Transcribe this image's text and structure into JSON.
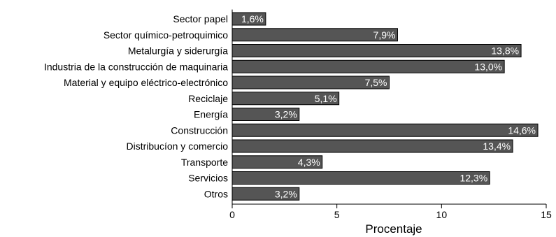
{
  "chart_data": {
    "type": "bar",
    "orientation": "horizontal",
    "categories": [
      "Sector papel",
      "Sector químico-petroquimico",
      "Metalurgía y siderurgía",
      "Industria de la construcción de maquinaria",
      "Material y equipo eléctrico-electrónico",
      "Reciclaje",
      "Energía",
      "Construcción",
      "Distribucíon y comercio",
      "Transporte",
      "Servicios",
      "Otros"
    ],
    "values": [
      1.6,
      7.9,
      13.8,
      13.0,
      7.5,
      5.1,
      3.2,
      14.6,
      13.4,
      4.3,
      12.3,
      3.2
    ],
    "value_labels": [
      "1,6%",
      "7,9%",
      "13,8%",
      "13,0%",
      "7,5%",
      "5,1%",
      "3,2%",
      "14,6%",
      "13,4%",
      "4,3%",
      "12,3%",
      "3,2%"
    ],
    "xlabel": "Procentaje",
    "ylabel": "",
    "title": "",
    "xlim": [
      0,
      15
    ],
    "xticks": [
      0,
      5,
      10,
      15
    ],
    "xtick_labels": [
      "0",
      "5",
      "10",
      "15"
    ],
    "grid": false,
    "legend": "none",
    "colors": {
      "bar_fill": "#555555",
      "bar_stroke": "#000000",
      "value_text": "#ffffff",
      "axis": "#000000"
    }
  }
}
